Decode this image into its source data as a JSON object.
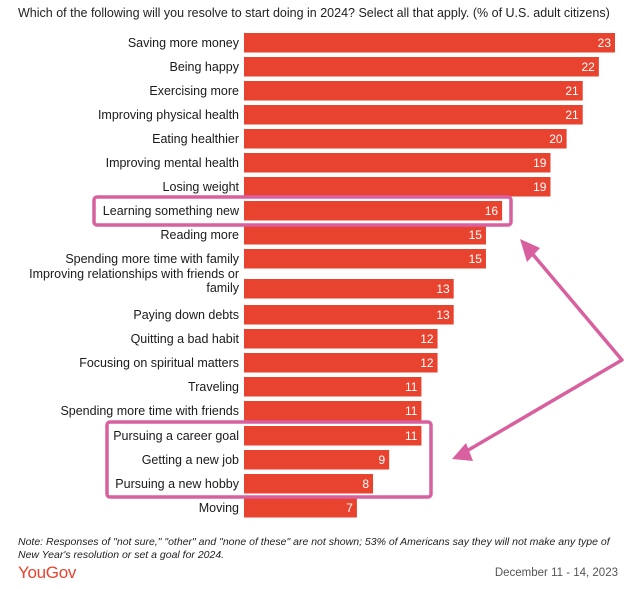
{
  "header": {
    "title": "Which of the following will you resolve to start doing in 2024? Select all that apply. (% of U.S. adult citizens)"
  },
  "chart_data": {
    "type": "bar",
    "orientation": "horizontal",
    "title": "Which of the following will you resolve to start doing in 2024? Select all that apply. (% of U.S. adult citizens)",
    "xlabel": "",
    "ylabel": "",
    "xlim": [
      0,
      23
    ],
    "bar_color": "#e8432e",
    "highlight_color": "#d9609e",
    "categories": [
      [
        "Saving more money"
      ],
      [
        "Being happy"
      ],
      [
        "Exercising more"
      ],
      [
        "Improving physical health"
      ],
      [
        "Eating healthier"
      ],
      [
        "Improving mental health"
      ],
      [
        "Losing weight"
      ],
      [
        "Learning something new"
      ],
      [
        "Reading more"
      ],
      [
        "Spending more time with family"
      ],
      [
        "Improving relationships with friends or",
        "family"
      ],
      [
        "Paying down debts"
      ],
      [
        "Quitting a bad habit"
      ],
      [
        "Focusing on spiritual matters"
      ],
      [
        "Traveling"
      ],
      [
        "Spending more time with friends"
      ],
      [
        "Pursuing a career goal"
      ],
      [
        "Getting a new job"
      ],
      [
        "Pursuing a new hobby"
      ],
      [
        "Moving"
      ]
    ],
    "values": [
      23,
      22,
      21,
      21,
      20,
      19,
      19,
      16,
      15,
      15,
      13,
      13,
      12,
      12,
      11,
      11,
      11,
      9,
      8,
      7
    ],
    "annotations": {
      "highlight_groups": [
        [
          7
        ],
        [
          16,
          17,
          18
        ]
      ],
      "arrow": "double-headed arrow connecting the two highlighted groups"
    }
  },
  "footer": {
    "note": "Note: Responses of \"not sure,\" \"other\" and \"none of these\" are not shown; 53% of Americans say they will not make any type of New Year's resolution or set a goal for 2024.",
    "brand": "YouGov",
    "date": "December 11 - 14, 2023"
  }
}
